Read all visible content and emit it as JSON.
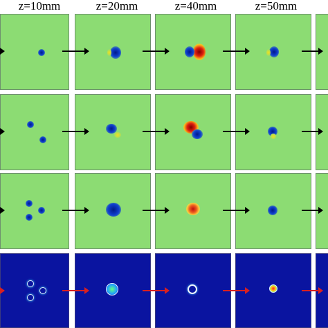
{
  "columns": [
    {
      "label": "z=10mm"
    },
    {
      "label": "z=20mm"
    },
    {
      "label": "z=40mm"
    },
    {
      "label": "z=50mm"
    }
  ],
  "colors": {
    "background_field": "#8cdc73",
    "intensity_background": "#0a14a0",
    "arrow_field": "#000000",
    "arrow_intensity": "#d82020"
  },
  "rows": [
    {
      "type": "field",
      "count": 1
    },
    {
      "type": "field",
      "count": 2
    },
    {
      "type": "field",
      "count": 3
    },
    {
      "type": "intensity",
      "count": 3
    }
  ]
}
